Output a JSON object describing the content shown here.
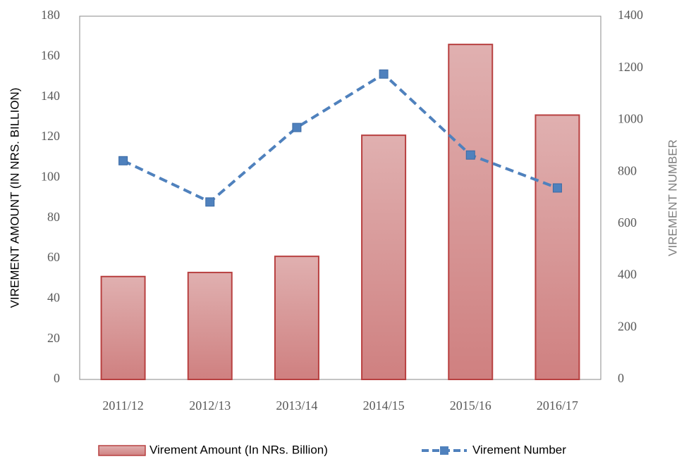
{
  "chart_data": {
    "type": "bar",
    "categories": [
      "2011/12",
      "2012/13",
      "2013/14",
      "2014/15",
      "2015/16",
      "2016/17"
    ],
    "series": [
      {
        "name": "Virement Amount (In NRs. Billion)",
        "type": "bar",
        "color": "#d48a8a",
        "values": [
          51,
          53,
          61,
          121,
          166,
          131
        ]
      },
      {
        "name": "Virement Number",
        "type": "line",
        "axis": "y2",
        "color": "#4f81bd",
        "values": [
          843,
          684,
          971,
          1177,
          865,
          738
        ]
      }
    ],
    "ylabel": "VIREMENT AMOUNT (IN NRS. BILLION)",
    "y2label": "VIREMENT NUMBER",
    "ylim": [
      0,
      180
    ],
    "yticks": [
      0,
      20,
      40,
      60,
      80,
      100,
      120,
      140,
      160,
      180
    ],
    "y2lim": [
      0,
      1400
    ],
    "y2ticks": [
      0,
      200,
      400,
      600,
      800,
      1000,
      1200,
      1400
    ],
    "grid": false,
    "legend": "bottom"
  }
}
